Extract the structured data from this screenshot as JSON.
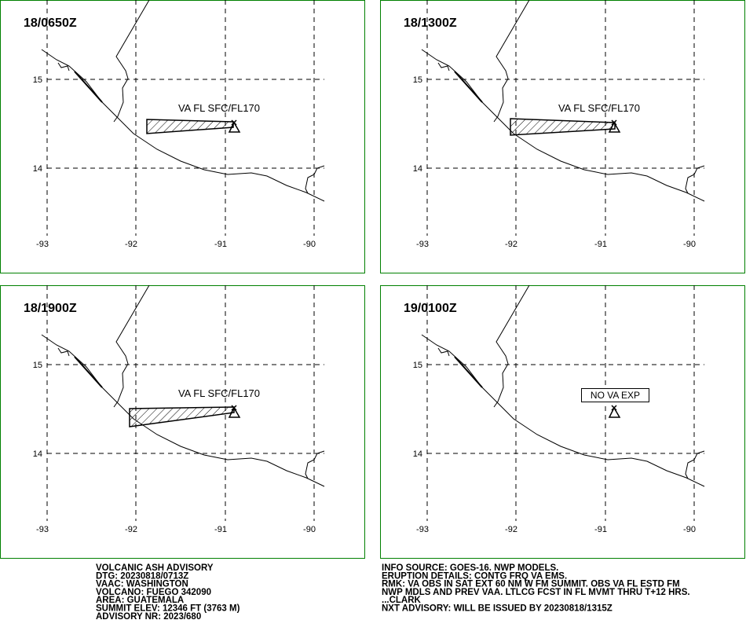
{
  "grid": {
    "lon_labels": [
      "-93",
      "-92",
      "-91",
      "-90"
    ],
    "lat_labels": [
      "15",
      "14"
    ]
  },
  "panels": [
    {
      "time": "18/0650Z",
      "annotation": "VA FL SFC/FL170",
      "ash": true
    },
    {
      "time": "18/1300Z",
      "annotation": "VA FL SFC/FL170",
      "ash": true
    },
    {
      "time": "18/1900Z",
      "annotation": "VA FL SFC/FL170",
      "ash": true
    },
    {
      "time": "19/0100Z",
      "annotation": "NO VA EXP",
      "ash": false
    }
  ],
  "advisory_left": [
    "VOLCANIC ASH ADVISORY",
    "DTG: 20230818/0713Z",
    "VAAC: WASHINGTON",
    "VOLCANO: FUEGO 342090",
    "AREA: GUATEMALA",
    "SUMMIT ELEV: 12346 FT (3763 M)",
    "ADVISORY NR: 2023/680"
  ],
  "advisory_right": [
    "INFO SOURCE: GOES-16. NWP MODELS.",
    "ERUPTION DETAILS: CONTG FRQ VA EMS.",
    "RMK: VA OBS IN SAT EXT 60 NM W FM SUMMIT. OBS VA FL ESTD FM",
    "NWP MDLS AND PREV VAA. LTLCG FCST IN FL MVMT THRU T+12 HRS.",
    "...CLARK",
    "NXT ADVISORY: WILL BE ISSUED BY 20230818/1315Z"
  ]
}
